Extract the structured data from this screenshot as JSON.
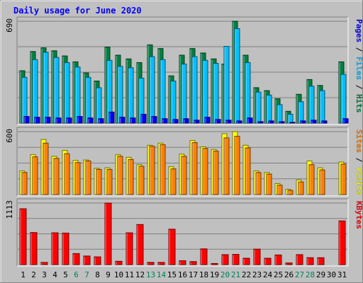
{
  "chart_data": {
    "type": "bar",
    "title": "Daily usage for June 2020",
    "x": [
      "1",
      "2",
      "3",
      "4",
      "5",
      "6",
      "7",
      "8",
      "9",
      "10",
      "11",
      "12",
      "13",
      "14",
      "15",
      "16",
      "17",
      "18",
      "19",
      "20",
      "21",
      "22",
      "23",
      "24",
      "25",
      "26",
      "27",
      "28",
      "29",
      "30",
      "31"
    ],
    "weekend_days": [
      "6",
      "7",
      "13",
      "14",
      "20",
      "21",
      "27",
      "28"
    ],
    "panels": [
      {
        "name": "hits",
        "ymax_label": "690",
        "ylim": [
          0,
          690
        ],
        "legend": [
          "Pages",
          "Files",
          "Hits"
        ],
        "series": [
          {
            "name": "Hits",
            "color": "#008040",
            "values": [
              355,
              485,
              510,
              490,
              455,
              415,
              340,
              285,
              515,
              460,
              435,
              410,
              530,
              505,
              320,
              460,
              505,
              475,
              435,
              400,
              690,
              460,
              240,
              220,
              165,
              80,
              195,
              295,
              255,
              0,
              415
            ]
          },
          {
            "name": "Files",
            "color": "#00c0ff",
            "values": [
              310,
              430,
              480,
              445,
              410,
              380,
              310,
              240,
              425,
              385,
              375,
              305,
              450,
              430,
              285,
              400,
              450,
              425,
              405,
              520,
              640,
              410,
              210,
              190,
              125,
              60,
              145,
              250,
              220,
              0,
              330
            ]
          },
          {
            "name": "Pages",
            "color": "#0000ff",
            "values": [
              45,
              40,
              40,
              35,
              35,
              45,
              35,
              30,
              75,
              40,
              35,
              60,
              45,
              30,
              25,
              30,
              20,
              40,
              25,
              20,
              15,
              35,
              10,
              15,
              10,
              5,
              15,
              20,
              15,
              0,
              30
            ]
          }
        ]
      },
      {
        "name": "visits",
        "ymax_label": "600",
        "ylim": [
          0,
          600
        ],
        "legend": [
          "Sites",
          "Visits"
        ],
        "series": [
          {
            "name": "Visits",
            "color": "#ffff00",
            "values": [
              225,
              380,
              525,
              365,
              420,
              325,
              330,
              250,
              255,
              380,
              355,
              285,
              470,
              490,
              265,
              385,
              515,
              455,
              430,
              580,
              600,
              470,
              225,
              210,
              105,
              50,
              140,
              320,
              255,
              0,
              310
            ]
          },
          {
            "name": "Sites",
            "color": "#ff8000",
            "values": [
              210,
              360,
              490,
              345,
              390,
              305,
              320,
              240,
              240,
              365,
              335,
              270,
              460,
              475,
              245,
              365,
              495,
              440,
              415,
              540,
              555,
              445,
              210,
              195,
              90,
              40,
              120,
              285,
              235,
              0,
              290
            ]
          }
        ]
      },
      {
        "name": "kbytes",
        "ymax_label": "1113",
        "ylim": [
          0,
          1113
        ],
        "legend": [
          "KBytes"
        ],
        "series": [
          {
            "name": "KBytes",
            "color": "#ff0000",
            "values": [
              1010,
              580,
              40,
              575,
              570,
              200,
              155,
              140,
              1113,
              60,
              575,
              725,
              40,
              40,
              640,
              70,
              55,
              285,
              20,
              180,
              185,
              115,
              280,
              115,
              175,
              30,
              180,
              125,
              125,
              0,
              790
            ]
          }
        ]
      }
    ]
  }
}
